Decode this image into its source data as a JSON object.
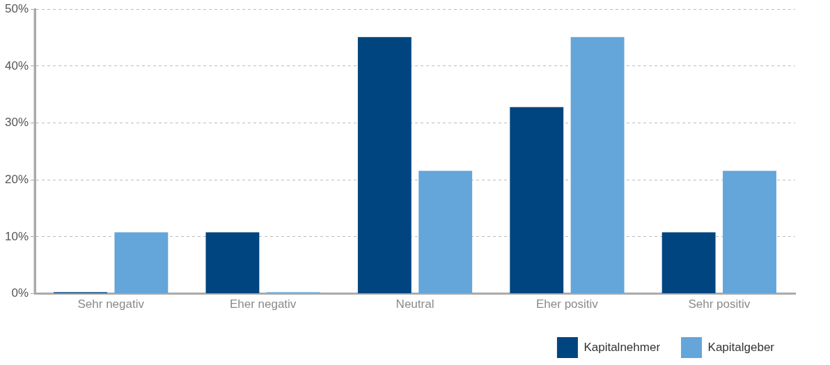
{
  "chart_data": {
    "type": "bar",
    "categories": [
      "Sehr negativ",
      "Eher negativ",
      "Neutral",
      "Eher positiv",
      "Sehr positiv"
    ],
    "series": [
      {
        "name": "Kapitalnehmer",
        "color": "#00457f",
        "values": [
          0,
          10.8,
          45.1,
          32.8,
          10.8
        ]
      },
      {
        "name": "Kapitalgeber",
        "color": "#64a5da",
        "values": [
          10.8,
          0,
          21.6,
          45.1,
          21.6
        ]
      }
    ],
    "ylim": [
      0,
      50
    ],
    "yticks": [
      {
        "value": 0,
        "label": "0%"
      },
      {
        "value": 10,
        "label": "10%"
      },
      {
        "value": 20,
        "label": "20%"
      },
      {
        "value": 30,
        "label": "30%"
      },
      {
        "value": 40,
        "label": "40%"
      },
      {
        "value": 50,
        "label": "50%"
      }
    ],
    "grid": "y",
    "legend": "bottom right"
  }
}
